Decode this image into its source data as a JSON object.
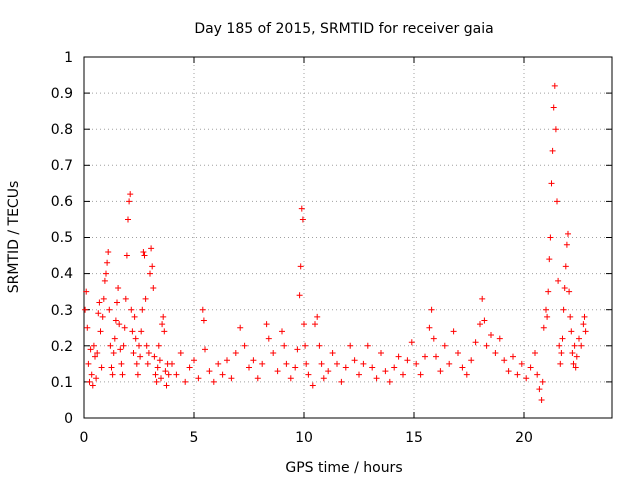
{
  "chart_data": {
    "type": "scatter",
    "title": "Day 185 of 2015, SRMTID for receiver gaia",
    "xlabel": "GPS time / hours",
    "ylabel": "SRMTID / TECUs",
    "xlim": [
      0,
      24
    ],
    "ylim": [
      0,
      1
    ],
    "xticks": [
      0,
      5,
      10,
      15,
      20
    ],
    "xtick_labels": [
      "0",
      "5",
      "10",
      "15",
      "20"
    ],
    "yticks": [
      0,
      0.1,
      0.2,
      0.3,
      0.4,
      0.5,
      0.6,
      0.7,
      0.8,
      0.9,
      1
    ],
    "ytick_labels": [
      "0",
      "0.1",
      "0.2",
      "0.3",
      "0.4",
      "0.5",
      "0.6",
      "0.7",
      "0.8",
      "0.9",
      "1"
    ],
    "grid": true,
    "marker": "+",
    "color": "#ff0000",
    "series": [
      {
        "name": "SRMTID",
        "points": [
          [
            0.05,
            0.3
          ],
          [
            0.1,
            0.35
          ],
          [
            0.15,
            0.25
          ],
          [
            0.2,
            0.15
          ],
          [
            0.25,
            0.1
          ],
          [
            0.3,
            0.19
          ],
          [
            0.35,
            0.12
          ],
          [
            0.4,
            0.09
          ],
          [
            0.45,
            0.2
          ],
          [
            0.5,
            0.17
          ],
          [
            0.55,
            0.11
          ],
          [
            0.6,
            0.18
          ],
          [
            0.65,
            0.29
          ],
          [
            0.7,
            0.32
          ],
          [
            0.75,
            0.24
          ],
          [
            0.8,
            0.14
          ],
          [
            0.85,
            0.28
          ],
          [
            0.9,
            0.33
          ],
          [
            0.95,
            0.38
          ],
          [
            1.0,
            0.4
          ],
          [
            1.05,
            0.43
          ],
          [
            1.1,
            0.46
          ],
          [
            1.15,
            0.3
          ],
          [
            1.2,
            0.2
          ],
          [
            1.25,
            0.14
          ],
          [
            1.3,
            0.12
          ],
          [
            1.35,
            0.18
          ],
          [
            1.4,
            0.22
          ],
          [
            1.45,
            0.27
          ],
          [
            1.5,
            0.32
          ],
          [
            1.55,
            0.36
          ],
          [
            1.6,
            0.26
          ],
          [
            1.65,
            0.19
          ],
          [
            1.7,
            0.15
          ],
          [
            1.75,
            0.12
          ],
          [
            1.8,
            0.2
          ],
          [
            1.85,
            0.25
          ],
          [
            1.9,
            0.33
          ],
          [
            1.95,
            0.45
          ],
          [
            2.0,
            0.55
          ],
          [
            2.05,
            0.6
          ],
          [
            2.1,
            0.62
          ],
          [
            2.15,
            0.3
          ],
          [
            2.2,
            0.24
          ],
          [
            2.25,
            0.18
          ],
          [
            2.3,
            0.28
          ],
          [
            2.35,
            0.22
          ],
          [
            2.4,
            0.15
          ],
          [
            2.45,
            0.12
          ],
          [
            2.5,
            0.2
          ],
          [
            2.55,
            0.17
          ],
          [
            2.6,
            0.24
          ],
          [
            2.65,
            0.3
          ],
          [
            2.7,
            0.46
          ],
          [
            2.75,
            0.45
          ],
          [
            2.8,
            0.33
          ],
          [
            2.85,
            0.2
          ],
          [
            2.9,
            0.15
          ],
          [
            2.95,
            0.18
          ],
          [
            3.0,
            0.4
          ],
          [
            3.05,
            0.47
          ],
          [
            3.1,
            0.42
          ],
          [
            3.15,
            0.36
          ],
          [
            3.2,
            0.17
          ],
          [
            3.25,
            0.12
          ],
          [
            3.3,
            0.1
          ],
          [
            3.35,
            0.14
          ],
          [
            3.4,
            0.2
          ],
          [
            3.45,
            0.16
          ],
          [
            3.5,
            0.11
          ],
          [
            3.55,
            0.26
          ],
          [
            3.6,
            0.28
          ],
          [
            3.65,
            0.24
          ],
          [
            3.7,
            0.13
          ],
          [
            3.75,
            0.09
          ],
          [
            3.8,
            0.15
          ],
          [
            3.85,
            0.12
          ],
          [
            4.0,
            0.15
          ],
          [
            4.2,
            0.12
          ],
          [
            4.4,
            0.18
          ],
          [
            4.6,
            0.1
          ],
          [
            4.8,
            0.14
          ],
          [
            5.0,
            0.16
          ],
          [
            5.2,
            0.11
          ],
          [
            5.4,
            0.3
          ],
          [
            5.45,
            0.27
          ],
          [
            5.5,
            0.19
          ],
          [
            5.7,
            0.13
          ],
          [
            5.9,
            0.1
          ],
          [
            6.1,
            0.15
          ],
          [
            6.3,
            0.12
          ],
          [
            6.5,
            0.16
          ],
          [
            6.7,
            0.11
          ],
          [
            6.9,
            0.18
          ],
          [
            7.1,
            0.25
          ],
          [
            7.3,
            0.2
          ],
          [
            7.5,
            0.14
          ],
          [
            7.7,
            0.16
          ],
          [
            7.9,
            0.11
          ],
          [
            8.1,
            0.15
          ],
          [
            8.3,
            0.26
          ],
          [
            8.4,
            0.22
          ],
          [
            8.6,
            0.18
          ],
          [
            8.8,
            0.13
          ],
          [
            9.0,
            0.24
          ],
          [
            9.1,
            0.2
          ],
          [
            9.2,
            0.15
          ],
          [
            9.4,
            0.11
          ],
          [
            9.6,
            0.14
          ],
          [
            9.7,
            0.19
          ],
          [
            9.8,
            0.34
          ],
          [
            9.85,
            0.42
          ],
          [
            9.9,
            0.58
          ],
          [
            9.95,
            0.55
          ],
          [
            10.0,
            0.26
          ],
          [
            10.05,
            0.2
          ],
          [
            10.1,
            0.15
          ],
          [
            10.2,
            0.12
          ],
          [
            10.4,
            0.09
          ],
          [
            10.5,
            0.26
          ],
          [
            10.6,
            0.28
          ],
          [
            10.7,
            0.2
          ],
          [
            10.8,
            0.15
          ],
          [
            10.9,
            0.11
          ],
          [
            11.1,
            0.13
          ],
          [
            11.3,
            0.18
          ],
          [
            11.5,
            0.15
          ],
          [
            11.7,
            0.1
          ],
          [
            11.9,
            0.14
          ],
          [
            12.1,
            0.2
          ],
          [
            12.3,
            0.16
          ],
          [
            12.5,
            0.12
          ],
          [
            12.7,
            0.15
          ],
          [
            12.9,
            0.2
          ],
          [
            13.1,
            0.14
          ],
          [
            13.3,
            0.11
          ],
          [
            13.5,
            0.18
          ],
          [
            13.7,
            0.13
          ],
          [
            13.9,
            0.1
          ],
          [
            14.1,
            0.14
          ],
          [
            14.3,
            0.17
          ],
          [
            14.5,
            0.12
          ],
          [
            14.7,
            0.16
          ],
          [
            14.9,
            0.21
          ],
          [
            15.1,
            0.15
          ],
          [
            15.3,
            0.12
          ],
          [
            15.5,
            0.17
          ],
          [
            15.7,
            0.25
          ],
          [
            15.8,
            0.3
          ],
          [
            15.9,
            0.22
          ],
          [
            16.0,
            0.17
          ],
          [
            16.2,
            0.13
          ],
          [
            16.4,
            0.2
          ],
          [
            16.6,
            0.15
          ],
          [
            16.8,
            0.24
          ],
          [
            17.0,
            0.18
          ],
          [
            17.2,
            0.14
          ],
          [
            17.4,
            0.12
          ],
          [
            17.6,
            0.16
          ],
          [
            17.8,
            0.21
          ],
          [
            18.0,
            0.26
          ],
          [
            18.1,
            0.33
          ],
          [
            18.2,
            0.27
          ],
          [
            18.3,
            0.2
          ],
          [
            18.5,
            0.23
          ],
          [
            18.7,
            0.18
          ],
          [
            18.9,
            0.22
          ],
          [
            19.1,
            0.16
          ],
          [
            19.3,
            0.13
          ],
          [
            19.5,
            0.17
          ],
          [
            19.7,
            0.12
          ],
          [
            19.9,
            0.15
          ],
          [
            20.1,
            0.11
          ],
          [
            20.3,
            0.14
          ],
          [
            20.5,
            0.18
          ],
          [
            20.6,
            0.12
          ],
          [
            20.7,
            0.08
          ],
          [
            20.8,
            0.05
          ],
          [
            20.85,
            0.1
          ],
          [
            20.9,
            0.25
          ],
          [
            21.0,
            0.3
          ],
          [
            21.05,
            0.28
          ],
          [
            21.1,
            0.35
          ],
          [
            21.15,
            0.44
          ],
          [
            21.2,
            0.5
          ],
          [
            21.25,
            0.65
          ],
          [
            21.3,
            0.74
          ],
          [
            21.35,
            0.86
          ],
          [
            21.4,
            0.92
          ],
          [
            21.45,
            0.8
          ],
          [
            21.5,
            0.6
          ],
          [
            21.55,
            0.38
          ],
          [
            21.6,
            0.2
          ],
          [
            21.65,
            0.15
          ],
          [
            21.7,
            0.18
          ],
          [
            21.75,
            0.22
          ],
          [
            21.8,
            0.3
          ],
          [
            21.85,
            0.36
          ],
          [
            21.9,
            0.42
          ],
          [
            21.95,
            0.48
          ],
          [
            22.0,
            0.51
          ],
          [
            22.05,
            0.35
          ],
          [
            22.1,
            0.28
          ],
          [
            22.15,
            0.24
          ],
          [
            22.2,
            0.18
          ],
          [
            22.25,
            0.15
          ],
          [
            22.3,
            0.2
          ],
          [
            22.35,
            0.14
          ],
          [
            22.4,
            0.17
          ],
          [
            22.5,
            0.22
          ],
          [
            22.6,
            0.2
          ],
          [
            22.7,
            0.26
          ],
          [
            22.75,
            0.28
          ],
          [
            22.8,
            0.24
          ]
        ]
      }
    ]
  }
}
